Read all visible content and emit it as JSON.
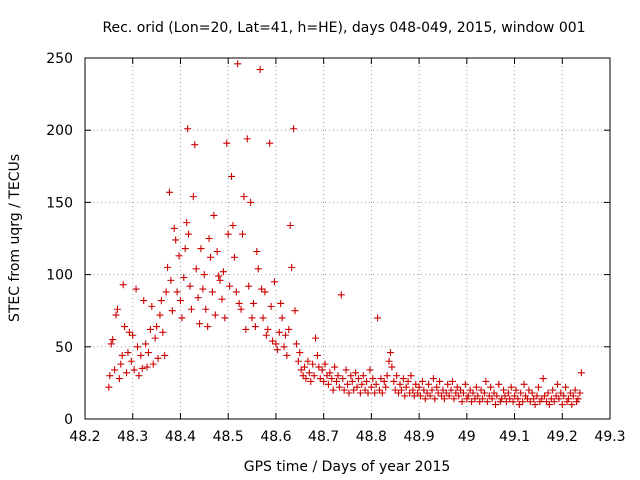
{
  "chart_data": {
    "type": "scatter",
    "title": "Rec. orid (Lon=20, Lat=41, h=HE), days 048-049, 2015, window 001",
    "xlabel": "GPS time / Days of year 2015",
    "ylabel": "STEC from uqrg / TECUs",
    "xlim": [
      48.2,
      49.3
    ],
    "ylim": [
      0,
      250
    ],
    "xticks": [
      "48.2",
      "48.3",
      "48.4",
      "48.5",
      "48.6",
      "48.7",
      "48.8",
      "48.9",
      "49",
      "49.1",
      "49.2",
      "49.3"
    ],
    "yticks": [
      "0",
      "50",
      "100",
      "150",
      "200",
      "250"
    ],
    "grid": true,
    "marker": "plus",
    "marker_color": "#cc0000",
    "series": [
      {
        "points": [
          [
            48.25,
            22
          ],
          [
            48.252,
            30
          ],
          [
            48.255,
            52
          ],
          [
            48.258,
            55
          ],
          [
            48.262,
            34
          ],
          [
            48.265,
            72
          ],
          [
            48.268,
            76
          ],
          [
            48.272,
            28
          ],
          [
            48.275,
            38
          ],
          [
            48.278,
            44
          ],
          [
            48.28,
            93
          ],
          [
            48.283,
            64
          ],
          [
            48.287,
            32
          ],
          [
            48.29,
            46
          ],
          [
            48.293,
            60
          ],
          [
            48.297,
            40
          ],
          [
            48.3,
            58
          ],
          [
            48.303,
            34
          ],
          [
            48.307,
            90
          ],
          [
            48.31,
            50
          ],
          [
            48.313,
            30
          ],
          [
            48.317,
            44
          ],
          [
            48.32,
            35
          ],
          [
            48.323,
            82
          ],
          [
            48.327,
            52
          ],
          [
            48.33,
            36
          ],
          [
            48.333,
            46
          ],
          [
            48.337,
            62
          ],
          [
            48.34,
            78
          ],
          [
            48.343,
            38
          ],
          [
            48.347,
            56
          ],
          [
            48.35,
            64
          ],
          [
            48.353,
            42
          ],
          [
            48.357,
            72
          ],
          [
            48.36,
            82
          ],
          [
            48.363,
            60
          ],
          [
            48.367,
            44
          ],
          [
            48.37,
            88
          ],
          [
            48.373,
            105
          ],
          [
            48.377,
            157
          ],
          [
            48.38,
            96
          ],
          [
            48.383,
            75
          ],
          [
            48.387,
            132
          ],
          [
            48.39,
            124
          ],
          [
            48.393,
            88
          ],
          [
            48.397,
            113
          ],
          [
            48.4,
            82
          ],
          [
            48.403,
            70
          ],
          [
            48.407,
            98
          ],
          [
            48.41,
            118
          ],
          [
            48.413,
            136
          ],
          [
            48.415,
            201
          ],
          [
            48.417,
            128
          ],
          [
            48.42,
            92
          ],
          [
            48.423,
            76
          ],
          [
            48.427,
            154
          ],
          [
            48.43,
            190
          ],
          [
            48.433,
            104
          ],
          [
            48.437,
            84
          ],
          [
            48.44,
            66
          ],
          [
            48.443,
            118
          ],
          [
            48.447,
            90
          ],
          [
            48.45,
            100
          ],
          [
            48.453,
            76
          ],
          [
            48.457,
            64
          ],
          [
            48.46,
            125
          ],
          [
            48.463,
            112
          ],
          [
            48.467,
            88
          ],
          [
            48.47,
            141
          ],
          [
            48.473,
            72
          ],
          [
            48.477,
            116
          ],
          [
            48.48,
            99
          ],
          [
            48.483,
            96
          ],
          [
            48.487,
            83
          ],
          [
            48.49,
            102
          ],
          [
            48.493,
            70
          ],
          [
            48.497,
            191
          ],
          [
            48.5,
            128
          ],
          [
            48.503,
            92
          ],
          [
            48.507,
            168
          ],
          [
            48.51,
            134
          ],
          [
            48.513,
            112
          ],
          [
            48.517,
            88
          ],
          [
            48.52,
            246
          ],
          [
            48.523,
            80
          ],
          [
            48.527,
            76
          ],
          [
            48.53,
            128
          ],
          [
            48.533,
            154
          ],
          [
            48.537,
            62
          ],
          [
            48.54,
            194
          ],
          [
            48.543,
            92
          ],
          [
            48.547,
            150
          ],
          [
            48.55,
            70
          ],
          [
            48.553,
            80
          ],
          [
            48.557,
            64
          ],
          [
            48.56,
            116
          ],
          [
            48.563,
            104
          ],
          [
            48.567,
            242
          ],
          [
            48.57,
            90
          ],
          [
            48.573,
            70
          ],
          [
            48.577,
            88
          ],
          [
            48.58,
            58
          ],
          [
            48.583,
            62
          ],
          [
            48.587,
            191
          ],
          [
            48.59,
            78
          ],
          [
            48.593,
            54
          ],
          [
            48.597,
            95
          ],
          [
            48.6,
            52
          ],
          [
            48.603,
            48
          ],
          [
            48.607,
            60
          ],
          [
            48.61,
            80
          ],
          [
            48.613,
            70
          ],
          [
            48.617,
            50
          ],
          [
            48.62,
            58
          ],
          [
            48.623,
            44
          ],
          [
            48.627,
            62
          ],
          [
            48.63,
            134
          ],
          [
            48.633,
            105
          ],
          [
            48.637,
            201
          ],
          [
            48.64,
            75
          ],
          [
            48.643,
            52
          ],
          [
            48.647,
            40
          ],
          [
            48.65,
            46
          ],
          [
            48.653,
            34
          ],
          [
            48.657,
            30
          ],
          [
            48.66,
            36
          ],
          [
            48.663,
            28
          ],
          [
            48.667,
            40
          ],
          [
            48.67,
            32
          ],
          [
            48.673,
            26
          ],
          [
            48.677,
            38
          ],
          [
            48.68,
            30
          ],
          [
            48.683,
            56
          ],
          [
            48.687,
            44
          ],
          [
            48.69,
            36
          ],
          [
            48.693,
            28
          ],
          [
            48.697,
            34
          ],
          [
            48.7,
            26
          ],
          [
            48.703,
            38
          ],
          [
            48.707,
            30
          ],
          [
            48.71,
            24
          ],
          [
            48.713,
            32
          ],
          [
            48.717,
            28
          ],
          [
            48.72,
            20
          ],
          [
            48.723,
            36
          ],
          [
            48.727,
            26
          ],
          [
            48.73,
            30
          ],
          [
            48.733,
            22
          ],
          [
            48.737,
            86
          ],
          [
            48.74,
            28
          ],
          [
            48.743,
            20
          ],
          [
            48.747,
            34
          ],
          [
            48.75,
            24
          ],
          [
            48.753,
            18
          ],
          [
            48.757,
            30
          ],
          [
            48.76,
            26
          ],
          [
            48.763,
            20
          ],
          [
            48.767,
            32
          ],
          [
            48.77,
            22
          ],
          [
            48.773,
            28
          ],
          [
            48.777,
            18
          ],
          [
            48.78,
            24
          ],
          [
            48.783,
            30
          ],
          [
            48.787,
            20
          ],
          [
            48.79,
            26
          ],
          [
            48.793,
            18
          ],
          [
            48.797,
            34
          ],
          [
            48.8,
            22
          ],
          [
            48.803,
            28
          ],
          [
            48.807,
            18
          ],
          [
            48.81,
            24
          ],
          [
            48.813,
            70
          ],
          [
            48.817,
            20
          ],
          [
            48.82,
            28
          ],
          [
            48.823,
            18
          ],
          [
            48.827,
            26
          ],
          [
            48.83,
            22
          ],
          [
            48.833,
            30
          ],
          [
            48.837,
            40
          ],
          [
            48.84,
            46
          ],
          [
            48.843,
            36
          ],
          [
            48.847,
            26
          ],
          [
            48.85,
            20
          ],
          [
            48.853,
            30
          ],
          [
            48.857,
            18
          ],
          [
            48.86,
            24
          ],
          [
            48.863,
            20
          ],
          [
            48.867,
            28
          ],
          [
            48.87,
            16
          ],
          [
            48.873,
            22
          ],
          [
            48.877,
            26
          ],
          [
            48.88,
            18
          ],
          [
            48.883,
            30
          ],
          [
            48.887,
            20
          ],
          [
            48.89,
            16
          ],
          [
            48.893,
            24
          ],
          [
            48.897,
            18
          ],
          [
            48.9,
            22
          ],
          [
            48.903,
            16
          ],
          [
            48.907,
            26
          ],
          [
            48.91,
            20
          ],
          [
            48.913,
            14
          ],
          [
            48.917,
            18
          ],
          [
            48.92,
            24
          ],
          [
            48.923,
            16
          ],
          [
            48.927,
            20
          ],
          [
            48.93,
            28
          ],
          [
            48.933,
            14
          ],
          [
            48.937,
            22
          ],
          [
            48.94,
            18
          ],
          [
            48.943,
            26
          ],
          [
            48.947,
            16
          ],
          [
            48.95,
            20
          ],
          [
            48.953,
            14
          ],
          [
            48.957,
            18
          ],
          [
            48.96,
            24
          ],
          [
            48.963,
            16
          ],
          [
            48.967,
            20
          ],
          [
            48.97,
            26
          ],
          [
            48.973,
            14
          ],
          [
            48.977,
            18
          ],
          [
            48.98,
            22
          ],
          [
            48.983,
            16
          ],
          [
            48.987,
            20
          ],
          [
            48.99,
            12
          ],
          [
            48.993,
            18
          ],
          [
            48.997,
            24
          ],
          [
            49.0,
            14
          ],
          [
            49.003,
            16
          ],
          [
            49.007,
            20
          ],
          [
            49.01,
            12
          ],
          [
            49.013,
            18
          ],
          [
            49.017,
            14
          ],
          [
            49.02,
            22
          ],
          [
            49.023,
            16
          ],
          [
            49.027,
            12
          ],
          [
            49.03,
            20
          ],
          [
            49.033,
            14
          ],
          [
            49.037,
            18
          ],
          [
            49.04,
            26
          ],
          [
            49.043,
            12
          ],
          [
            49.047,
            16
          ],
          [
            49.05,
            22
          ],
          [
            49.053,
            14
          ],
          [
            49.057,
            18
          ],
          [
            49.06,
            10
          ],
          [
            49.063,
            16
          ],
          [
            49.067,
            24
          ],
          [
            49.07,
            12
          ],
          [
            49.073,
            14
          ],
          [
            49.077,
            20
          ],
          [
            49.08,
            16
          ],
          [
            49.083,
            12
          ],
          [
            49.087,
            18
          ],
          [
            49.09,
            14
          ],
          [
            49.093,
            22
          ],
          [
            49.097,
            12
          ],
          [
            49.1,
            16
          ],
          [
            49.103,
            20
          ],
          [
            49.107,
            14
          ],
          [
            49.11,
            10
          ],
          [
            49.113,
            18
          ],
          [
            49.117,
            12
          ],
          [
            49.12,
            24
          ],
          [
            49.123,
            16
          ],
          [
            49.127,
            14
          ],
          [
            49.13,
            20
          ],
          [
            49.133,
            12
          ],
          [
            49.137,
            18
          ],
          [
            49.14,
            14
          ],
          [
            49.143,
            10
          ],
          [
            49.147,
            16
          ],
          [
            49.15,
            22
          ],
          [
            49.153,
            12
          ],
          [
            49.157,
            14
          ],
          [
            49.16,
            28
          ],
          [
            49.163,
            16
          ],
          [
            49.167,
            12
          ],
          [
            49.17,
            18
          ],
          [
            49.173,
            10
          ],
          [
            49.177,
            14
          ],
          [
            49.18,
            20
          ],
          [
            49.183,
            12
          ],
          [
            49.187,
            16
          ],
          [
            49.19,
            24
          ],
          [
            49.193,
            14
          ],
          [
            49.197,
            18
          ],
          [
            49.2,
            10
          ],
          [
            49.203,
            16
          ],
          [
            49.207,
            22
          ],
          [
            49.21,
            12
          ],
          [
            49.213,
            14
          ],
          [
            49.217,
            18
          ],
          [
            49.22,
            10
          ],
          [
            49.223,
            16
          ],
          [
            49.227,
            20
          ],
          [
            49.23,
            12
          ],
          [
            49.233,
            14
          ],
          [
            49.237,
            18
          ],
          [
            49.24,
            32
          ]
        ]
      }
    ]
  }
}
